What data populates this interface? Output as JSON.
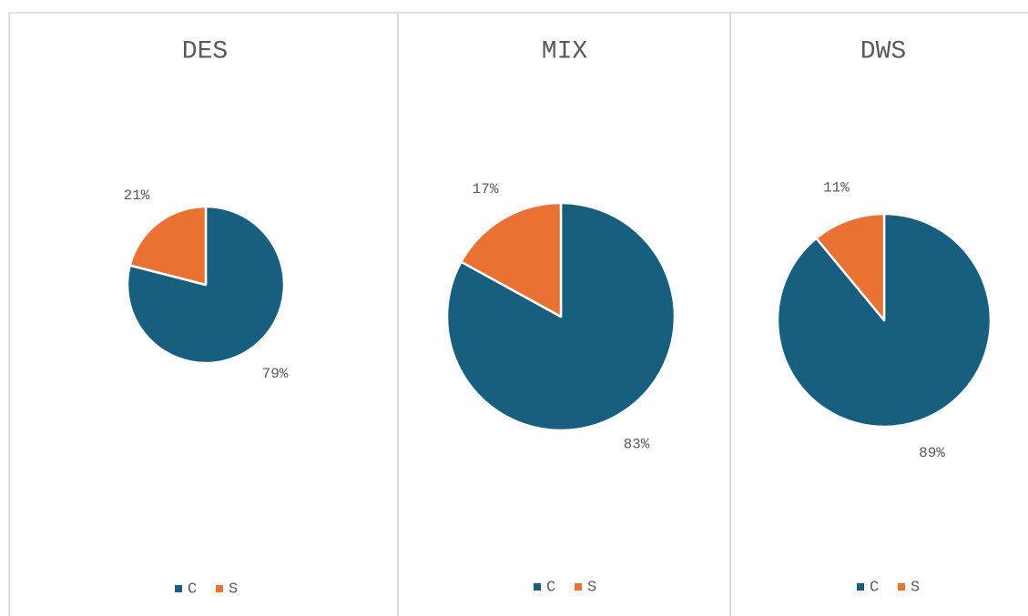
{
  "chart_data": [
    {
      "type": "pie",
      "title": "DES",
      "categories": [
        "C",
        "S"
      ],
      "values": [
        79,
        21
      ],
      "value_labels": [
        "79%",
        "21%"
      ],
      "colors": [
        "#175e7f",
        "#e97132"
      ]
    },
    {
      "type": "pie",
      "title": "MIX",
      "categories": [
        "C",
        "S"
      ],
      "values": [
        83,
        17
      ],
      "value_labels": [
        "83%",
        "17%"
      ],
      "colors": [
        "#175e7f",
        "#e97132"
      ]
    },
    {
      "type": "pie",
      "title": "DWS",
      "categories": [
        "C",
        "S"
      ],
      "values": [
        89,
        11
      ],
      "value_labels": [
        "89%",
        "11%"
      ],
      "colors": [
        "#175e7f",
        "#e97132"
      ]
    }
  ]
}
